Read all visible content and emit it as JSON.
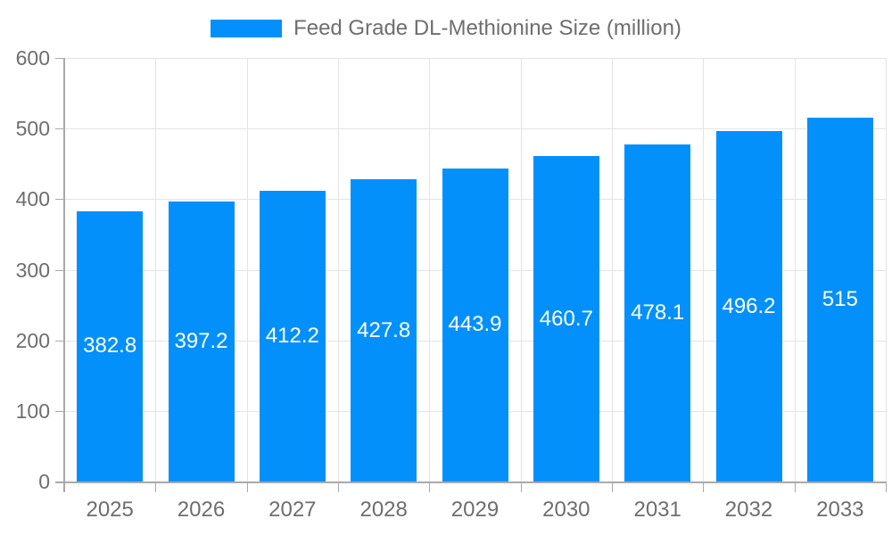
{
  "chart_data": {
    "type": "bar",
    "title": "Feed Grade DL-Methionine Size (million)",
    "legend_position": "top",
    "categories": [
      "2025",
      "2026",
      "2027",
      "2028",
      "2029",
      "2030",
      "2031",
      "2032",
      "2033"
    ],
    "values": [
      382.8,
      397.2,
      412.2,
      427.8,
      443.9,
      460.7,
      478.1,
      496.2,
      515
    ],
    "data_labels": [
      "382.8",
      "397.2",
      "412.2",
      "427.8",
      "443.9",
      "460.7",
      "478.1",
      "496.2",
      "515"
    ],
    "xlabel": "",
    "ylabel": "",
    "ylim": [
      0,
      600
    ],
    "yticks": [
      0,
      100,
      200,
      300,
      400,
      500,
      600
    ],
    "grid": true,
    "colors": {
      "bar": "#0490FA",
      "bar_label": "#FFFFFF",
      "axis_text": "#6E6E6E",
      "grid_line": "#E4E4E4",
      "axis_line": "#A9A9A9",
      "background": "#FFFFFF"
    }
  }
}
